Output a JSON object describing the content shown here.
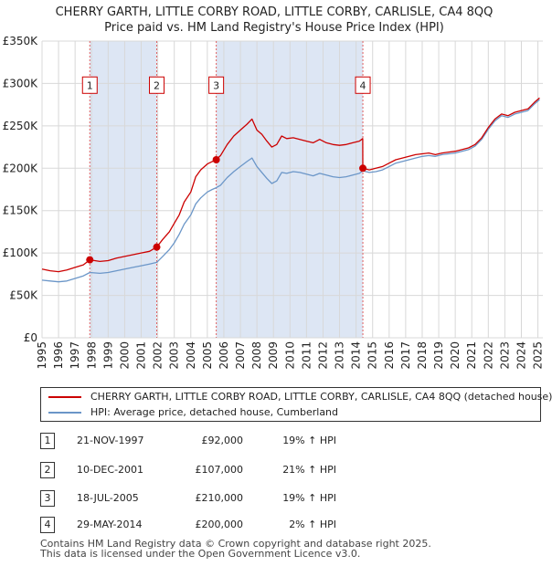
{
  "header": {
    "title_line1": "CHERRY GARTH, LITTLE CORBY ROAD, LITTLE CORBY, CARLISLE, CA4 8QQ",
    "title_line2": "Price paid vs. HM Land Registry's House Price Index (HPI)"
  },
  "legend": {
    "property_label": "CHERRY GARTH, LITTLE CORBY ROAD, LITTLE CORBY, CARLISLE, CA4 8QQ (detached house)",
    "hpi_label": "HPI: Average price, detached house, Cumberland"
  },
  "transactions": [
    {
      "num": "1",
      "date": "21-NOV-1997",
      "price": "£92,000",
      "hpi": "19% ↑ HPI"
    },
    {
      "num": "2",
      "date": "10-DEC-2001",
      "price": "£107,000",
      "hpi": "21% ↑ HPI"
    },
    {
      "num": "3",
      "date": "18-JUL-2005",
      "price": "£210,000",
      "hpi": "19% ↑ HPI"
    },
    {
      "num": "4",
      "date": "29-MAY-2014",
      "price": "£200,000",
      "hpi": "2% ↑ HPI"
    }
  ],
  "footer": {
    "line1": "Contains HM Land Registry data © Crown copyright and database right 2025.",
    "line2": "This data is licensed under the Open Government Licence v3.0."
  },
  "colors": {
    "property_line": "#cc0000",
    "hpi_line": "#6b96c8",
    "shade": "#dde6f4",
    "grid": "#d8d8d8",
    "vline": "#e06060"
  },
  "chart_data": {
    "type": "line",
    "title": "Price paid vs. HM Land Registry's House Price Index (HPI)",
    "xlabel": "",
    "ylabel": "",
    "xlim": [
      1995,
      2025.3
    ],
    "ylim": [
      0,
      350000
    ],
    "x_ticks": [
      1995,
      1996,
      1997,
      1998,
      1999,
      2000,
      2001,
      2002,
      2003,
      2004,
      2005,
      2006,
      2007,
      2008,
      2009,
      2010,
      2011,
      2012,
      2013,
      2014,
      2015,
      2016,
      2017,
      2018,
      2019,
      2020,
      2021,
      2022,
      2023,
      2024,
      2025
    ],
    "y_ticks": [
      {
        "value": 0,
        "label": "£0"
      },
      {
        "value": 50000,
        "label": "£50K"
      },
      {
        "value": 100000,
        "label": "£100K"
      },
      {
        "value": 150000,
        "label": "£150K"
      },
      {
        "value": 200000,
        "label": "£200K"
      },
      {
        "value": 250000,
        "label": "£250K"
      },
      {
        "value": 300000,
        "label": "£300K"
      },
      {
        "value": 350000,
        "label": "£350K"
      }
    ],
    "grid": true,
    "shaded_periods": [
      [
        1997.89,
        2001.94
      ],
      [
        2005.54,
        2014.41
      ]
    ],
    "sale_markers": [
      {
        "label": "1",
        "x": 1997.89,
        "price": 92000
      },
      {
        "label": "2",
        "x": 2001.94,
        "price": 107000
      },
      {
        "label": "3",
        "x": 2005.54,
        "price": 210000
      },
      {
        "label": "4",
        "x": 2014.41,
        "price": 200000
      }
    ],
    "marker_label_y": 298000,
    "series": [
      {
        "name": "CHERRY GARTH, LITTLE CORBY ROAD, LITTLE CORBY, CARLISLE, CA4 8QQ (detached house)",
        "x": [
          1995.0,
          1995.5,
          1996.0,
          1996.5,
          1997.0,
          1997.5,
          1997.89,
          1998.5,
          1999.0,
          1999.5,
          2000.0,
          2000.5,
          2001.0,
          2001.5,
          2001.94,
          2002.3,
          2002.7,
          2003.0,
          2003.3,
          2003.6,
          2004.0,
          2004.3,
          2004.6,
          2005.0,
          2005.3,
          2005.54,
          2005.8,
          2006.2,
          2006.6,
          2007.0,
          2007.4,
          2007.7,
          2008.0,
          2008.3,
          2008.6,
          2008.9,
          2009.2,
          2009.5,
          2009.8,
          2010.2,
          2010.6,
          2011.0,
          2011.4,
          2011.8,
          2012.2,
          2012.6,
          2013.0,
          2013.4,
          2013.8,
          2014.2,
          2014.4,
          2014.41,
          2014.8,
          2015.2,
          2015.6,
          2016.0,
          2016.4,
          2016.8,
          2017.2,
          2017.6,
          2018.0,
          2018.4,
          2018.8,
          2019.2,
          2019.6,
          2020.0,
          2020.4,
          2020.8,
          2021.2,
          2021.6,
          2022.0,
          2022.4,
          2022.8,
          2023.2,
          2023.6,
          2024.0,
          2024.4,
          2024.8,
          2025.1
        ],
        "y": [
          81000,
          79000,
          78000,
          80000,
          83000,
          86000,
          92000,
          90000,
          91000,
          94000,
          96000,
          98000,
          100000,
          102000,
          107000,
          116000,
          125000,
          135000,
          145000,
          160000,
          172000,
          190000,
          198000,
          205000,
          208000,
          210000,
          215000,
          228000,
          238000,
          245000,
          252000,
          258000,
          245000,
          240000,
          232000,
          225000,
          228000,
          238000,
          235000,
          236000,
          234000,
          232000,
          230000,
          234000,
          230000,
          228000,
          227000,
          228000,
          230000,
          232000,
          235000,
          200000,
          198000,
          200000,
          202000,
          206000,
          210000,
          212000,
          214000,
          216000,
          217000,
          218000,
          216000,
          218000,
          219000,
          220000,
          222000,
          224000,
          228000,
          236000,
          248000,
          258000,
          264000,
          262000,
          266000,
          268000,
          270000,
          278000,
          283000
        ]
      },
      {
        "name": "HPI: Average price, detached house, Cumberland",
        "x": [
          1995.0,
          1995.5,
          1996.0,
          1996.5,
          1997.0,
          1997.5,
          1997.89,
          1998.5,
          1999.0,
          1999.5,
          2000.0,
          2000.5,
          2001.0,
          2001.5,
          2001.94,
          2002.3,
          2002.7,
          2003.0,
          2003.3,
          2003.6,
          2004.0,
          2004.3,
          2004.6,
          2005.0,
          2005.3,
          2005.54,
          2005.8,
          2006.2,
          2006.6,
          2007.0,
          2007.4,
          2007.7,
          2008.0,
          2008.3,
          2008.6,
          2008.9,
          2009.2,
          2009.5,
          2009.8,
          2010.2,
          2010.6,
          2011.0,
          2011.4,
          2011.8,
          2012.2,
          2012.6,
          2013.0,
          2013.4,
          2013.8,
          2014.2,
          2014.41,
          2014.8,
          2015.2,
          2015.6,
          2016.0,
          2016.4,
          2016.8,
          2017.2,
          2017.6,
          2018.0,
          2018.4,
          2018.8,
          2019.2,
          2019.6,
          2020.0,
          2020.4,
          2020.8,
          2021.2,
          2021.6,
          2022.0,
          2022.4,
          2022.8,
          2023.2,
          2023.6,
          2024.0,
          2024.4,
          2024.8,
          2025.1
        ],
        "y": [
          68000,
          67000,
          66000,
          67000,
          70000,
          73000,
          77000,
          76000,
          77000,
          79000,
          81000,
          83000,
          85000,
          87000,
          89000,
          96000,
          104000,
          112000,
          122000,
          134000,
          145000,
          158000,
          165000,
          172000,
          175000,
          177000,
          180000,
          189000,
          196000,
          202000,
          208000,
          212000,
          202000,
          195000,
          188000,
          182000,
          185000,
          195000,
          194000,
          196000,
          195000,
          193000,
          191000,
          194000,
          192000,
          190000,
          189000,
          190000,
          192000,
          194000,
          197000,
          195000,
          196000,
          198000,
          202000,
          206000,
          208000,
          210000,
          212000,
          214000,
          215000,
          214000,
          216000,
          217000,
          218000,
          220000,
          222000,
          226000,
          234000,
          246000,
          256000,
          262000,
          260000,
          264000,
          266000,
          268000,
          276000,
          281000
        ]
      }
    ]
  }
}
